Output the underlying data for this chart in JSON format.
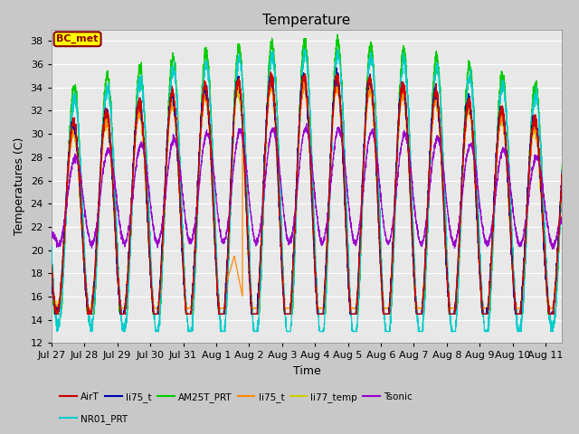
{
  "title": "Temperature",
  "xlabel": "Time",
  "ylabel": "Temperatures (C)",
  "ylim": [
    12,
    39
  ],
  "yticks": [
    12,
    14,
    16,
    18,
    20,
    22,
    24,
    26,
    28,
    30,
    32,
    34,
    36,
    38
  ],
  "annotation_text": "BC_met",
  "annotation_bg": "#ffff00",
  "annotation_border": "#8B0000",
  "fig_bg": "#c8c8c8",
  "plot_bg": "#e8e8e8",
  "grid_color": "#ffffff",
  "line_colors": {
    "AirT": "#cc0000",
    "li75_t_blue": "#0000aa",
    "AM25T_PRT": "#00cc00",
    "li75_t_orange": "#ff8800",
    "li77_temp": "#cccc00",
    "Tsonic": "#9900cc",
    "NR01_PRT": "#00cccc"
  },
  "tick_labels": [
    "Jul 27",
    "Jul 28",
    "Jul 29",
    "Jul 30",
    "Jul 31",
    "Aug 1",
    "Aug 2",
    "Aug 3",
    "Aug 4",
    "Aug 5",
    "Aug 6",
    "Aug 7",
    "Aug 8",
    "Aug 9",
    "Aug 10",
    "Aug 11"
  ],
  "num_days": 15.5,
  "seed": 42
}
